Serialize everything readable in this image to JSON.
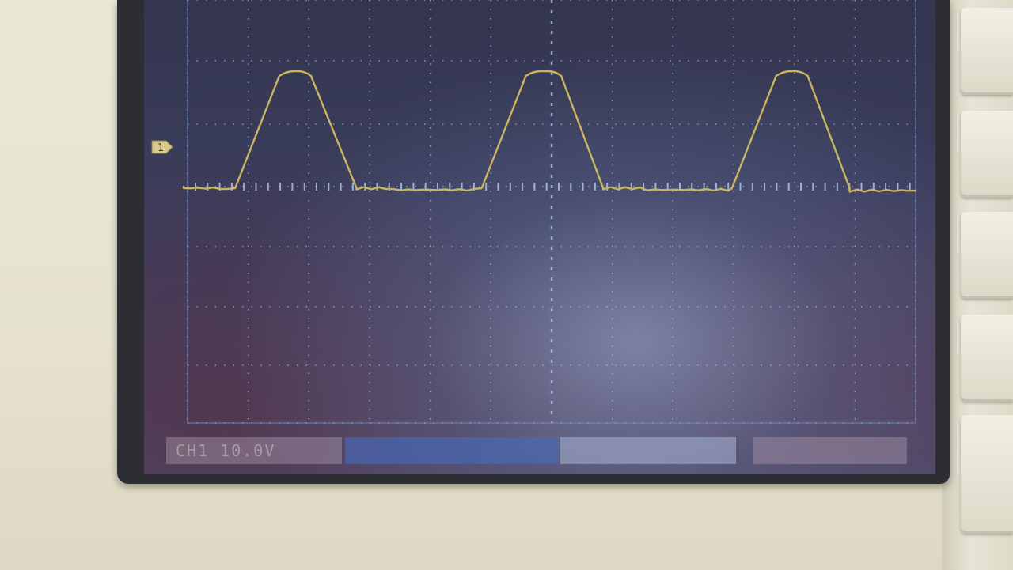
{
  "scope": {
    "channel_marker": "1",
    "status_left_text": "CH1  10.0V",
    "status_middle_text": "",
    "status_right_text": "",
    "trace_color": "#c9b560",
    "grid_color": "#a8c4e8"
  },
  "waveform": {
    "description_type": "trapezoid-pulse-train",
    "pulses": [
      {
        "rise_start": 0.07,
        "top_start": 0.13,
        "top_end": 0.165,
        "fall_end": 0.235
      },
      {
        "rise_start": 0.405,
        "top_start": 0.465,
        "top_end": 0.505,
        "fall_end": 0.57
      },
      {
        "rise_start": 0.745,
        "top_start": 0.805,
        "top_end": 0.84,
        "fall_end": 0.905
      }
    ]
  }
}
